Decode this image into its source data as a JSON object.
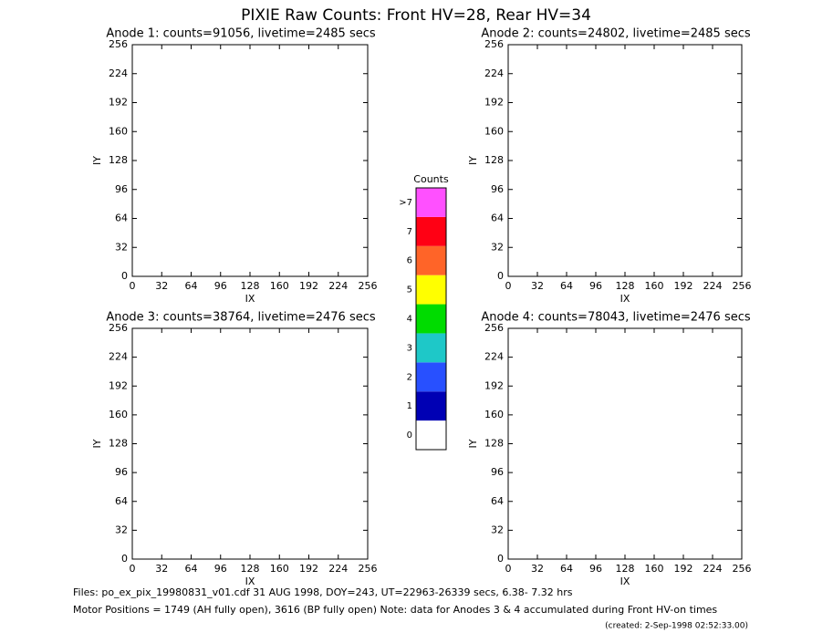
{
  "title": "PIXIE Raw Counts:  Front HV=28, Rear HV=34",
  "chart_data": [
    {
      "type": "heatmap",
      "title": "Anode 1: counts=91056, livetime=2485 secs",
      "xlabel": "IX",
      "ylabel": "IY",
      "xlim": [
        0,
        256
      ],
      "ylim": [
        0,
        256
      ],
      "xticks": [
        0,
        32,
        64,
        96,
        128,
        160,
        192,
        224,
        256
      ],
      "yticks": [
        0,
        32,
        64,
        96,
        128,
        160,
        192,
        224,
        256
      ]
    },
    {
      "type": "heatmap",
      "title": "Anode 2: counts=24802, livetime=2485 secs",
      "xlabel": "IX",
      "ylabel": "IY",
      "xlim": [
        0,
        256
      ],
      "ylim": [
        0,
        256
      ],
      "xticks": [
        0,
        32,
        64,
        96,
        128,
        160,
        192,
        224,
        256
      ],
      "yticks": [
        0,
        32,
        64,
        96,
        128,
        160,
        192,
        224,
        256
      ]
    },
    {
      "type": "heatmap",
      "title": "Anode 3: counts=38764, livetime=2476 secs",
      "xlabel": "IX",
      "ylabel": "IY",
      "xlim": [
        0,
        256
      ],
      "ylim": [
        0,
        256
      ],
      "xticks": [
        0,
        32,
        64,
        96,
        128,
        160,
        192,
        224,
        256
      ],
      "yticks": [
        0,
        32,
        64,
        96,
        128,
        160,
        192,
        224,
        256
      ]
    },
    {
      "type": "heatmap",
      "title": "Anode 4: counts=78043, livetime=2476 secs",
      "xlabel": "IX",
      "ylabel": "IY",
      "xlim": [
        0,
        256
      ],
      "ylim": [
        0,
        256
      ],
      "xticks": [
        0,
        32,
        64,
        96,
        128,
        160,
        192,
        224,
        256
      ],
      "yticks": [
        0,
        32,
        64,
        96,
        128,
        160,
        192,
        224,
        256
      ]
    }
  ],
  "colorbar": {
    "title": "Counts",
    "labels": [
      "0",
      "1",
      "2",
      "3",
      "4",
      "5",
      "6",
      "7",
      ">7"
    ],
    "colors": [
      "#ffffff",
      "#0000b4",
      "#2850ff",
      "#1ec8c8",
      "#00dc00",
      "#ffff00",
      "#ff6428",
      "#ff0014",
      "#ff50ff"
    ]
  },
  "footer": [
    "Files: po_ex_pix_19980831_v01.cdf    31 AUG 1998, DOY=243, UT=22963-26339 secs,  6.38- 7.32 hrs",
    "Motor Positions = 1749 (AH fully open), 3616 (BP fully open)    Note: data for Anodes 3 & 4 accumulated during Front HV-on times",
    "(created:  2-Sep-1998 02:52:33.00)"
  ]
}
